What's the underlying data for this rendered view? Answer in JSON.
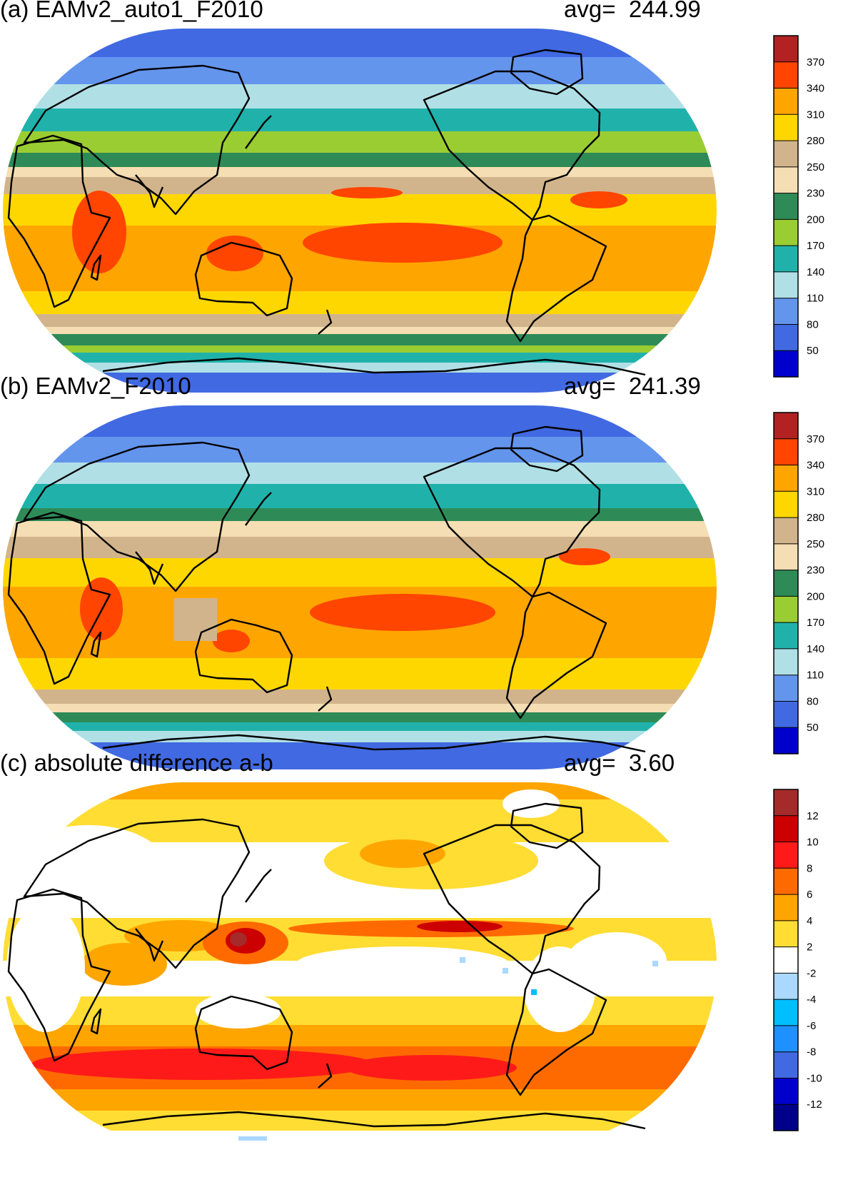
{
  "panels": [
    {
      "title": "(a) EAMv2_auto1_F2010",
      "avg_label": "avg=",
      "avg_value": "244.99",
      "scheme": "absolute"
    },
    {
      "title": "(b) EAMv2_F2010",
      "avg_label": "avg=",
      "avg_value": "241.39",
      "scheme": "absolute"
    },
    {
      "title": "(c) absolute difference a-b",
      "avg_label": "avg=",
      "avg_value": "3.60",
      "scheme": "difference"
    }
  ],
  "colorbars": {
    "absolute": {
      "labels": [
        "370",
        "340",
        "310",
        "280",
        "250",
        "230",
        "200",
        "170",
        "140",
        "110",
        "80",
        "50"
      ],
      "colors": [
        "#b22222",
        "#ff4500",
        "#ffa500",
        "#ffd700",
        "#d2b48c",
        "#f5deb3",
        "#2e8b57",
        "#9acd32",
        "#20b2aa",
        "#b0e0e6",
        "#6495ed",
        "#4169e1",
        "#0000cd"
      ]
    },
    "difference": {
      "labels": [
        "12",
        "10",
        "8",
        "6",
        "4",
        "2",
        "-2",
        "-4",
        "-6",
        "-8",
        "-10",
        "-12"
      ],
      "colors": [
        "#a52a2a",
        "#cc0000",
        "#ff1a1a",
        "#ff6a00",
        "#ffa500",
        "#ffdd33",
        "#ffffff",
        "#aad8ff",
        "#00bfff",
        "#1e90ff",
        "#4169e1",
        "#0000cd",
        "#00008b"
      ]
    }
  }
}
